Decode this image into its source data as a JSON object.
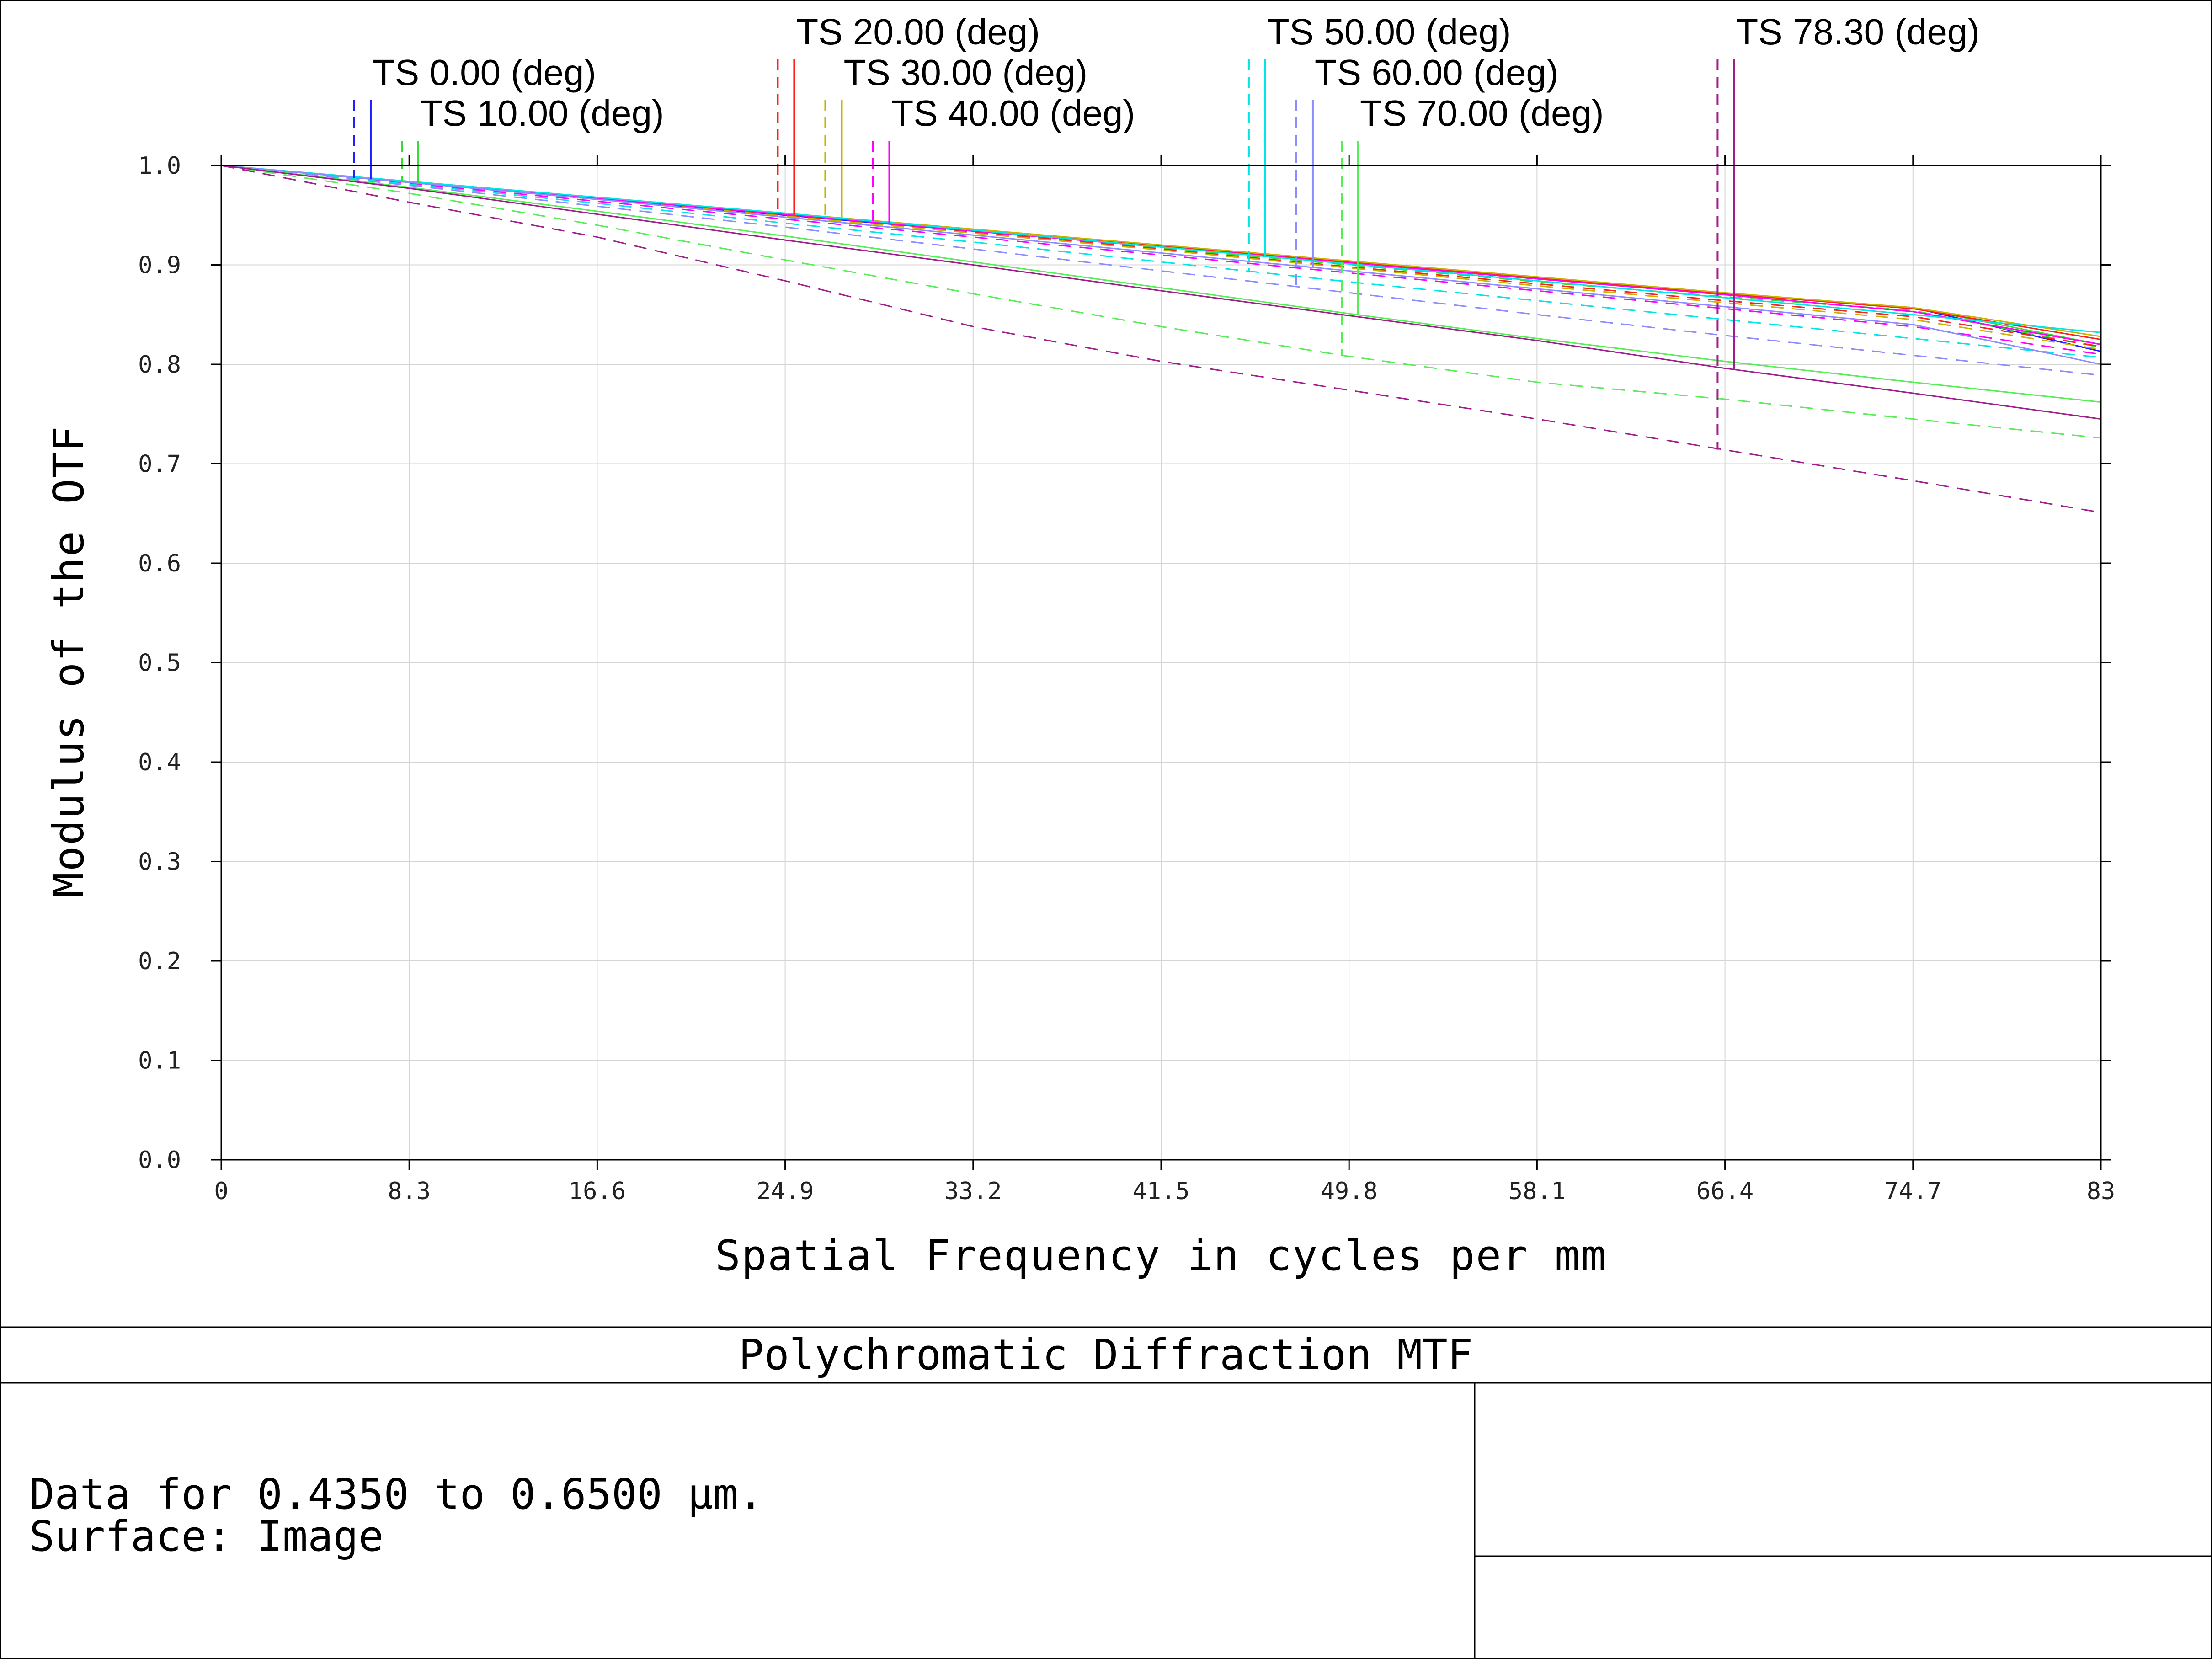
{
  "footer": {
    "title": "Polychromatic Diffraction MTF",
    "info_line1": "Data for 0.4350 to 0.6500 µm.",
    "info_line2": "Surface: Image"
  },
  "chart_data": {
    "type": "line",
    "title": "Polychromatic Diffraction MTF",
    "xlabel": "Spatial Frequency in cycles per mm",
    "ylabel": "Modulus of the OTF",
    "xlim": [
      0,
      83
    ],
    "ylim": [
      0,
      1
    ],
    "x_ticks": [
      "0",
      "8.3",
      "16.6",
      "24.9",
      "33.2",
      "41.5",
      "49.8",
      "58.1",
      "66.4",
      "74.7",
      "83"
    ],
    "y_ticks": [
      "0.0",
      "0.1",
      "0.2",
      "0.3",
      "0.4",
      "0.5",
      "0.6",
      "0.7",
      "0.8",
      "0.9",
      "1.0"
    ],
    "grid": true,
    "line_styles": {
      "T": "dashed",
      "S": "solid"
    },
    "x": [
      0,
      8.3,
      16.6,
      24.9,
      33.2,
      41.5,
      49.8,
      58.1,
      66.4,
      74.7,
      83
    ],
    "fields": [
      {
        "label": "TS 0.00 (deg)",
        "color": "#1f1fff",
        "marker_x": 6.6
      },
      {
        "label": "TS 10.00 (deg)",
        "color": "#33dd33",
        "marker_x": 8.7
      },
      {
        "label": "TS 20.00 (deg)",
        "color": "#ff1f1f",
        "marker_x": 25.3
      },
      {
        "label": "TS 30.00 (deg)",
        "color": "#c8b400",
        "marker_x": 27.4
      },
      {
        "label": "TS 40.00 (deg)",
        "color": "#ff00ff",
        "marker_x": 29.5
      },
      {
        "label": "TS 50.00 (deg)",
        "color": "#00e5e5",
        "marker_x": 46.1
      },
      {
        "label": "TS 60.00 (deg)",
        "color": "#8c8cff",
        "marker_x": 48.2
      },
      {
        "label": "TS 70.00 (deg)",
        "color": "#55ee55",
        "marker_x": 50.2
      },
      {
        "label": "TS 78.30 (deg)",
        "color": "#a01e8c",
        "marker_x": 66.8
      }
    ],
    "series": [
      {
        "field": 0,
        "style": "T",
        "color": "#1f1fff",
        "values": [
          1,
          0.983,
          0.966,
          0.95,
          0.934,
          0.918,
          0.902,
          0.886,
          0.871,
          0.857,
          0.813
        ]
      },
      {
        "field": 0,
        "style": "S",
        "color": "#1f1fff",
        "values": [
          1,
          0.983,
          0.966,
          0.95,
          0.934,
          0.918,
          0.902,
          0.886,
          0.871,
          0.857,
          0.813
        ]
      },
      {
        "field": 1,
        "style": "T",
        "color": "#33dd33",
        "values": [
          1,
          0.983,
          0.966,
          0.95,
          0.934,
          0.917,
          0.9,
          0.883,
          0.868,
          0.854,
          0.817
        ]
      },
      {
        "field": 1,
        "style": "S",
        "color": "#33dd33",
        "values": [
          1,
          0.983,
          0.967,
          0.951,
          0.935,
          0.919,
          0.902,
          0.886,
          0.871,
          0.857,
          0.82
        ]
      },
      {
        "field": 2,
        "style": "T",
        "color": "#ff1f1f",
        "values": [
          1,
          0.983,
          0.966,
          0.95,
          0.933,
          0.916,
          0.898,
          0.881,
          0.864,
          0.848,
          0.818
        ]
      },
      {
        "field": 2,
        "style": "S",
        "color": "#ff1f1f",
        "values": [
          1,
          0.983,
          0.967,
          0.951,
          0.935,
          0.919,
          0.903,
          0.887,
          0.871,
          0.856,
          0.825
        ]
      },
      {
        "field": 3,
        "style": "T",
        "color": "#c8b400",
        "values": [
          1,
          0.983,
          0.966,
          0.949,
          0.932,
          0.915,
          0.897,
          0.879,
          0.862,
          0.845,
          0.815
        ]
      },
      {
        "field": 3,
        "style": "S",
        "color": "#c8b400",
        "values": [
          1,
          0.984,
          0.968,
          0.952,
          0.936,
          0.92,
          0.904,
          0.888,
          0.872,
          0.857,
          0.828
        ]
      },
      {
        "field": 4,
        "style": "T",
        "color": "#ff00ff",
        "values": [
          1,
          0.982,
          0.964,
          0.946,
          0.928,
          0.91,
          0.892,
          0.874,
          0.856,
          0.838,
          0.81
        ]
      },
      {
        "field": 4,
        "style": "S",
        "color": "#ff00ff",
        "values": [
          1,
          0.983,
          0.967,
          0.951,
          0.934,
          0.918,
          0.902,
          0.886,
          0.87,
          0.853,
          0.82
        ]
      },
      {
        "field": 5,
        "style": "T",
        "color": "#00e5e5",
        "values": [
          1,
          0.981,
          0.962,
          0.942,
          0.923,
          0.903,
          0.883,
          0.864,
          0.845,
          0.826,
          0.807
        ]
      },
      {
        "field": 5,
        "style": "S",
        "color": "#00e5e5",
        "values": [
          1,
          0.984,
          0.968,
          0.952,
          0.935,
          0.918,
          0.901,
          0.884,
          0.867,
          0.85,
          0.832
        ]
      },
      {
        "field": 6,
        "style": "T",
        "color": "#8c8cff",
        "values": [
          1,
          0.98,
          0.959,
          0.938,
          0.916,
          0.894,
          0.872,
          0.85,
          0.829,
          0.809,
          0.789
        ]
      },
      {
        "field": 6,
        "style": "S",
        "color": "#8c8cff",
        "values": [
          1,
          0.983,
          0.966,
          0.948,
          0.93,
          0.912,
          0.894,
          0.876,
          0.858,
          0.84,
          0.8
        ]
      },
      {
        "field": 7,
        "style": "T",
        "color": "#55ee55",
        "values": [
          1,
          0.972,
          0.94,
          0.905,
          0.871,
          0.838,
          0.808,
          0.782,
          0.765,
          0.745,
          0.726
        ]
      },
      {
        "field": 7,
        "style": "S",
        "color": "#55ee55",
        "values": [
          1,
          0.978,
          0.954,
          0.929,
          0.903,
          0.877,
          0.851,
          0.826,
          0.803,
          0.782,
          0.762
        ]
      },
      {
        "field": 8,
        "style": "T",
        "color": "#a01e8c",
        "values": [
          1,
          0.963,
          0.928,
          0.884,
          0.838,
          0.803,
          0.774,
          0.745,
          0.714,
          0.683,
          0.651
        ]
      },
      {
        "field": 8,
        "style": "S",
        "color": "#a01e8c",
        "values": [
          1,
          0.977,
          0.951,
          0.925,
          0.9,
          0.874,
          0.849,
          0.824,
          0.796,
          0.771,
          0.745
        ]
      }
    ]
  }
}
